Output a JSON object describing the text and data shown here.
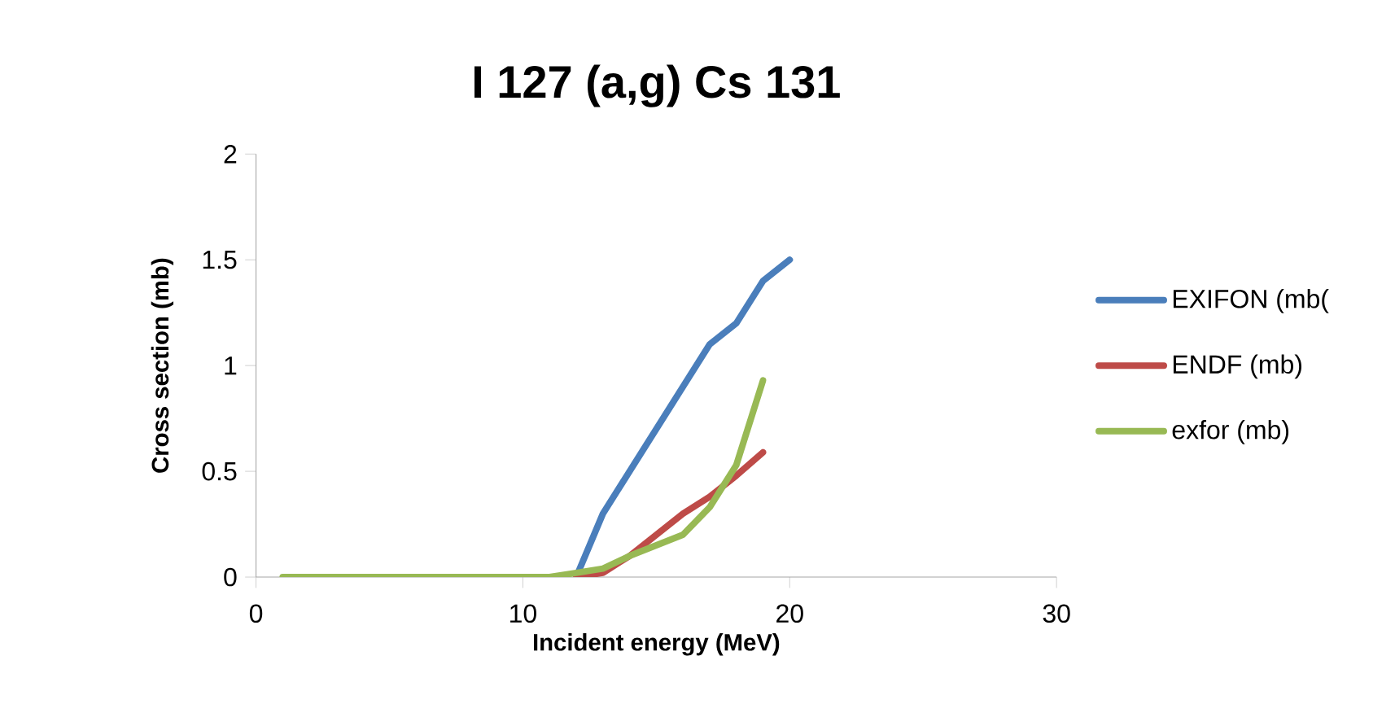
{
  "chart_data": {
    "type": "line",
    "title": "I 127 (a,g) Cs 131",
    "xlabel": "Incident energy (MeV)",
    "ylabel": "Cross section (mb)",
    "series": [
      {
        "name": "EXIFON (mb(",
        "color": "#4a7ebb",
        "x": [
          12,
          13,
          14,
          15,
          16,
          17,
          18,
          19,
          20
        ],
        "values": [
          0,
          0.3,
          0.5,
          0.7,
          0.9,
          1.1,
          1.2,
          1.4,
          1.5
        ]
      },
      {
        "name": "ENDF (mb)",
        "color": "#be4b48",
        "x": [
          12,
          13,
          14,
          15,
          16,
          17,
          18,
          19
        ],
        "values": [
          0,
          0.02,
          0.1,
          0.2,
          0.3,
          0.38,
          0.48,
          0.59
        ]
      },
      {
        "name": "exfor (mb)",
        "color": "#98b954",
        "x": [
          1,
          2,
          3,
          4,
          5,
          6,
          7,
          8,
          9,
          10,
          11,
          12,
          13,
          14,
          15,
          16,
          17,
          18,
          19
        ],
        "values": [
          0,
          0,
          0,
          0,
          0,
          0,
          0,
          0,
          0,
          0,
          0,
          0.02,
          0.04,
          0.1,
          0.15,
          0.2,
          0.33,
          0.53,
          0.93
        ]
      }
    ],
    "xlim": [
      0,
      30
    ],
    "xticks": [
      0,
      10,
      20,
      30
    ],
    "ylim": [
      0,
      2
    ],
    "yticks": [
      0,
      0.5,
      1,
      1.5,
      2
    ],
    "grid": false,
    "legend": "right",
    "marker": "none",
    "line_style": "solid"
  }
}
